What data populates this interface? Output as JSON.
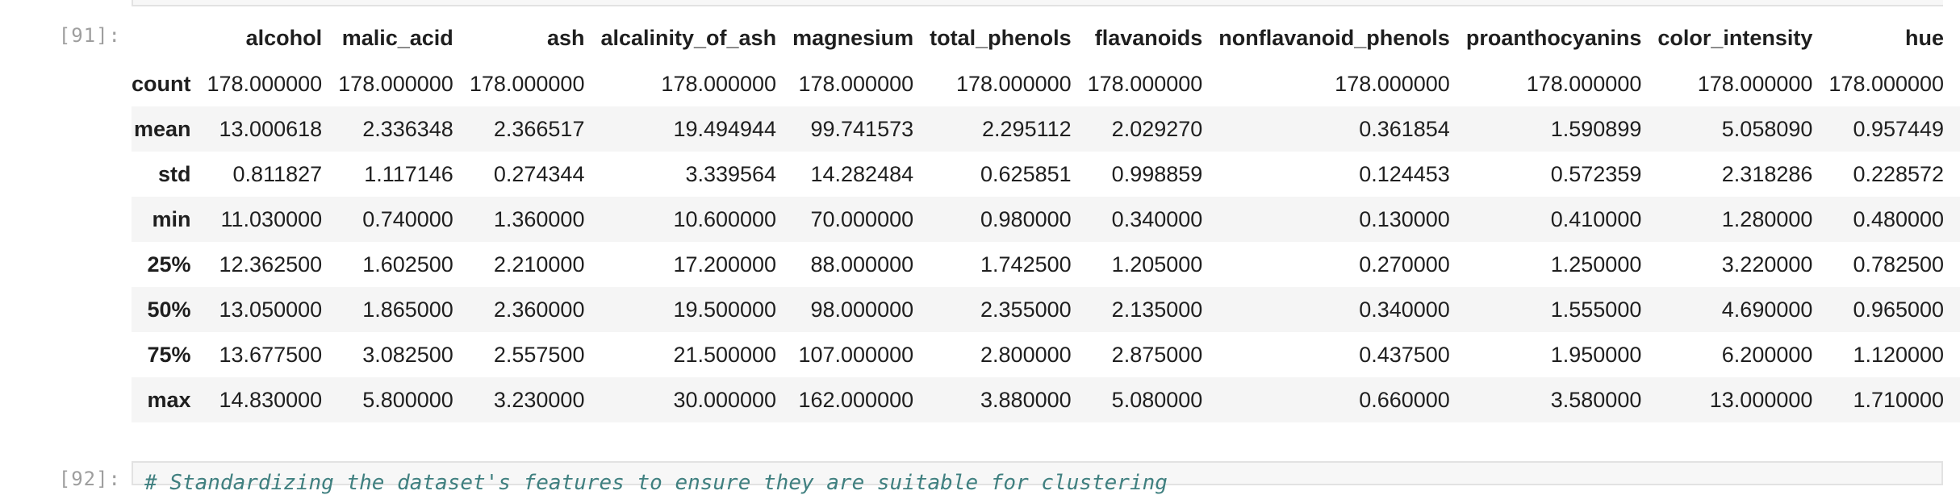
{
  "cells": [
    {
      "prompt": "[91]:"
    },
    {
      "prompt": "[92]:",
      "code_comment": "# Standardizing the dataset's features to ensure they are suitable for clustering"
    }
  ],
  "table": {
    "columns": [
      "",
      "alcohol",
      "malic_acid",
      "ash",
      "alcalinity_of_ash",
      "magnesium",
      "total_phenols",
      "flavanoids",
      "nonflavanoid_phenols",
      "proanthocyanins",
      "color_intensity",
      "hue"
    ],
    "rows": [
      {
        "label": "count",
        "values": [
          "178.000000",
          "178.000000",
          "178.000000",
          "178.000000",
          "178.000000",
          "178.000000",
          "178.000000",
          "178.000000",
          "178.000000",
          "178.000000",
          "178.000000"
        ]
      },
      {
        "label": "mean",
        "values": [
          "13.000618",
          "2.336348",
          "2.366517",
          "19.494944",
          "99.741573",
          "2.295112",
          "2.029270",
          "0.361854",
          "1.590899",
          "5.058090",
          "0.957449"
        ]
      },
      {
        "label": "std",
        "values": [
          "0.811827",
          "1.117146",
          "0.274344",
          "3.339564",
          "14.282484",
          "0.625851",
          "0.998859",
          "0.124453",
          "0.572359",
          "2.318286",
          "0.228572"
        ]
      },
      {
        "label": "min",
        "values": [
          "11.030000",
          "0.740000",
          "1.360000",
          "10.600000",
          "70.000000",
          "0.980000",
          "0.340000",
          "0.130000",
          "0.410000",
          "1.280000",
          "0.480000"
        ]
      },
      {
        "label": "25%",
        "values": [
          "12.362500",
          "1.602500",
          "2.210000",
          "17.200000",
          "88.000000",
          "1.742500",
          "1.205000",
          "0.270000",
          "1.250000",
          "3.220000",
          "0.782500"
        ]
      },
      {
        "label": "50%",
        "values": [
          "13.050000",
          "1.865000",
          "2.360000",
          "19.500000",
          "98.000000",
          "2.355000",
          "2.135000",
          "0.340000",
          "1.555000",
          "4.690000",
          "0.965000"
        ]
      },
      {
        "label": "75%",
        "values": [
          "13.677500",
          "3.082500",
          "2.557500",
          "21.500000",
          "107.000000",
          "2.800000",
          "2.875000",
          "0.437500",
          "1.950000",
          "6.200000",
          "1.120000"
        ]
      },
      {
        "label": "max",
        "values": [
          "14.830000",
          "5.800000",
          "3.230000",
          "30.000000",
          "162.000000",
          "3.880000",
          "5.080000",
          "0.660000",
          "3.580000",
          "13.000000",
          "1.710000"
        ]
      }
    ]
  }
}
